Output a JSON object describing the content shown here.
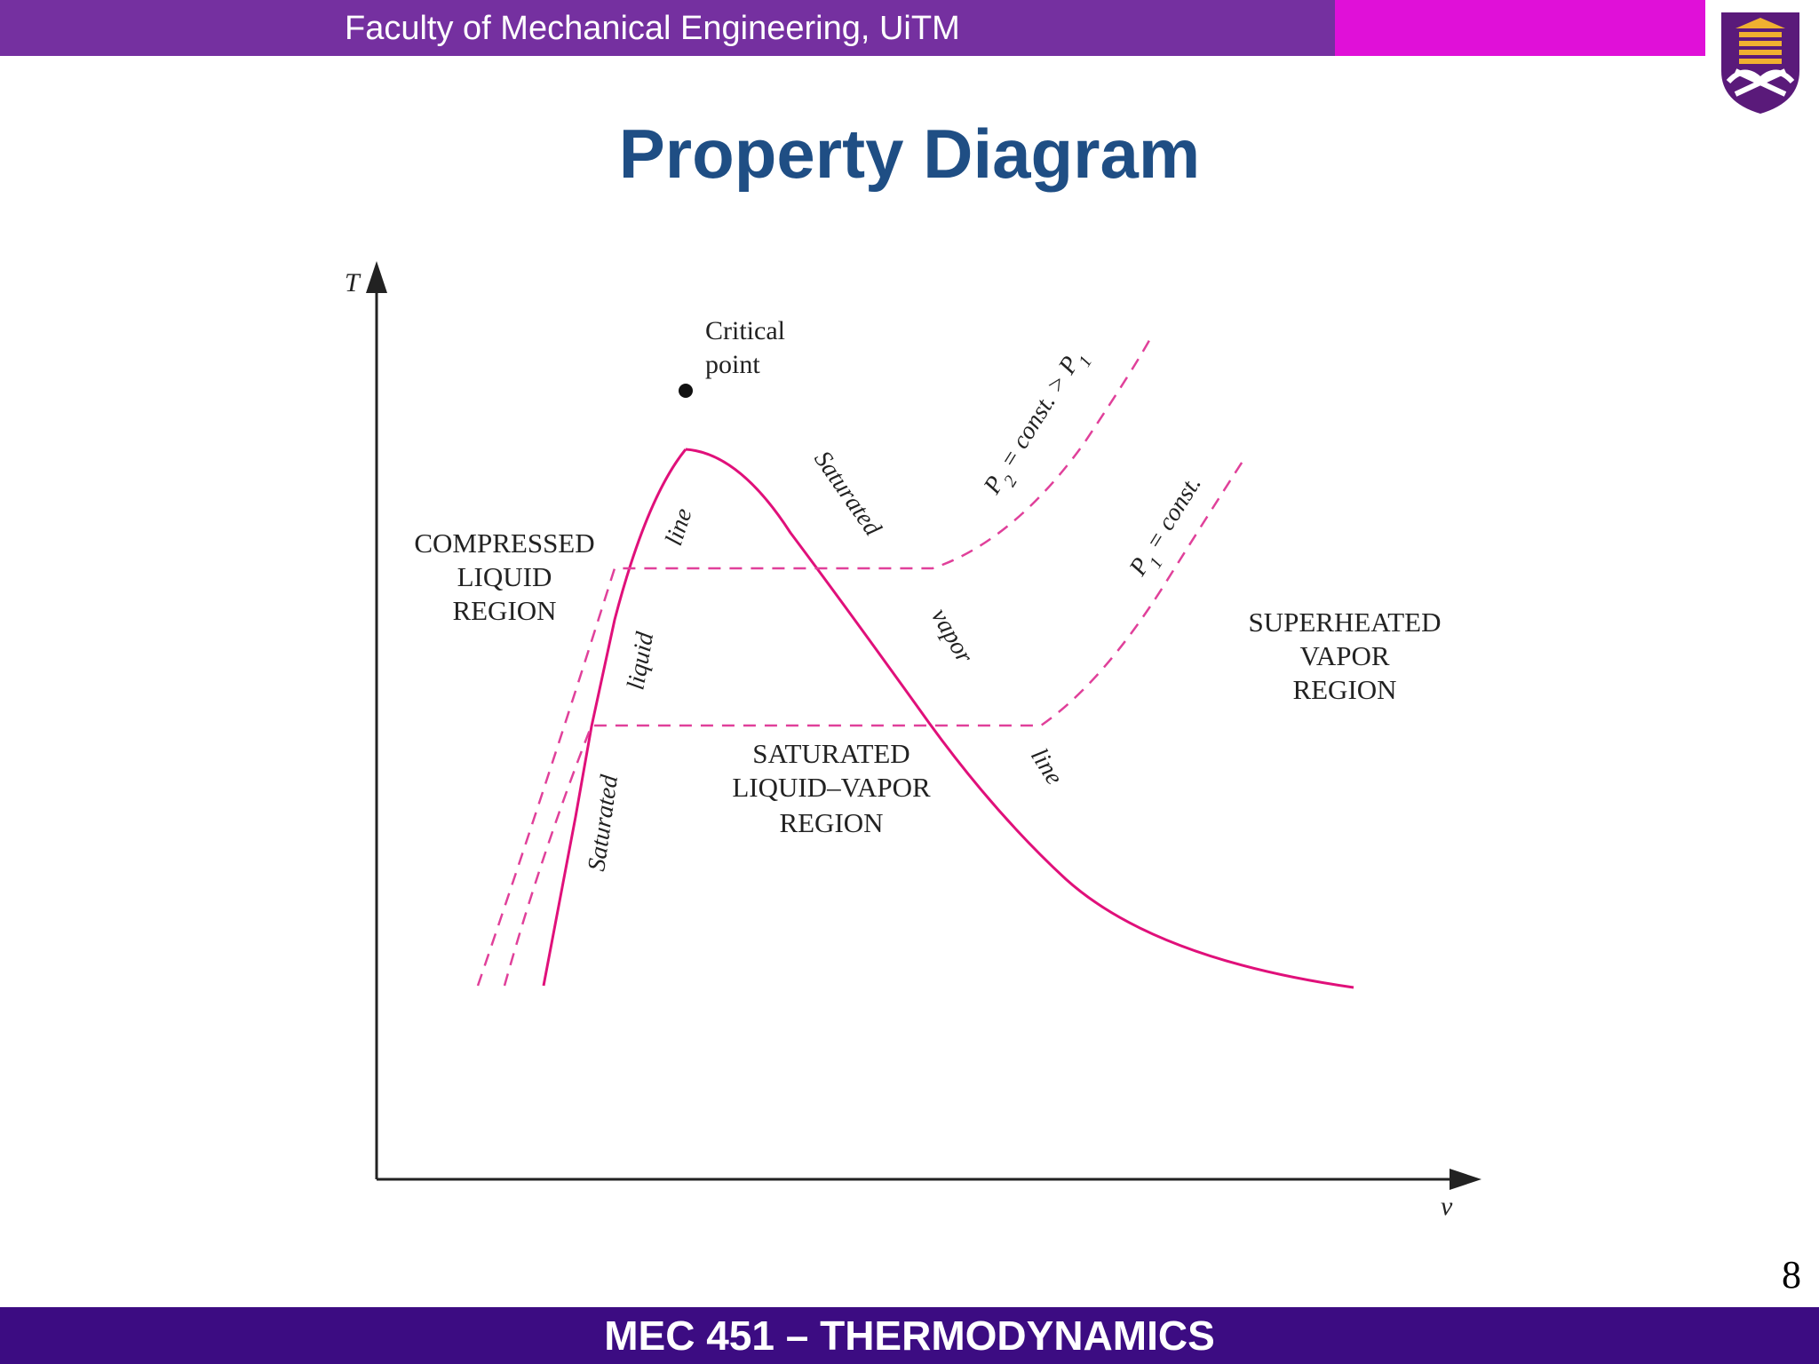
{
  "header": {
    "text": "Faculty of Mechanical Engineering, UiTM",
    "bar_color": "#7530a0",
    "accent_color": "#e010d8"
  },
  "logo": {
    "icon": "uitm-crest-icon"
  },
  "title": "Property Diagram",
  "diagram": {
    "axis_y_label": "T",
    "axis_x_label": "v",
    "critical_point_label_line1": "Critical",
    "critical_point_label_line2": "point",
    "compressed_line1": "COMPRESSED",
    "compressed_line2": "LIQUID",
    "compressed_line3": "REGION",
    "saturated_line1": "SATURATED",
    "saturated_line2": "LIQUID–VAPOR",
    "saturated_line3": "REGION",
    "superheated_line1": "SUPERHEATED",
    "superheated_line2": "VAPOR",
    "superheated_line3": "REGION",
    "sat_liquid_word1": "Saturated",
    "sat_liquid_word2": "liquid",
    "sat_liquid_word3": "line",
    "sat_vapor_word1": "Saturated",
    "sat_vapor_word2": "vapor",
    "sat_vapor_word3": "line",
    "p2_label_prefix": "P",
    "p2_label_sub": "2",
    "p2_label_mid": " = const. > P",
    "p2_label_sub2": "1",
    "p1_label_prefix": "P",
    "p1_label_sub": "1",
    "p1_label_mid": " = const.",
    "curve_color": "#e0107a",
    "dash_color": "#e0409a"
  },
  "slide_number": "8",
  "footer": {
    "text": "MEC 451 – THERMODYNAMICS",
    "bar_color": "#3c0c82"
  }
}
